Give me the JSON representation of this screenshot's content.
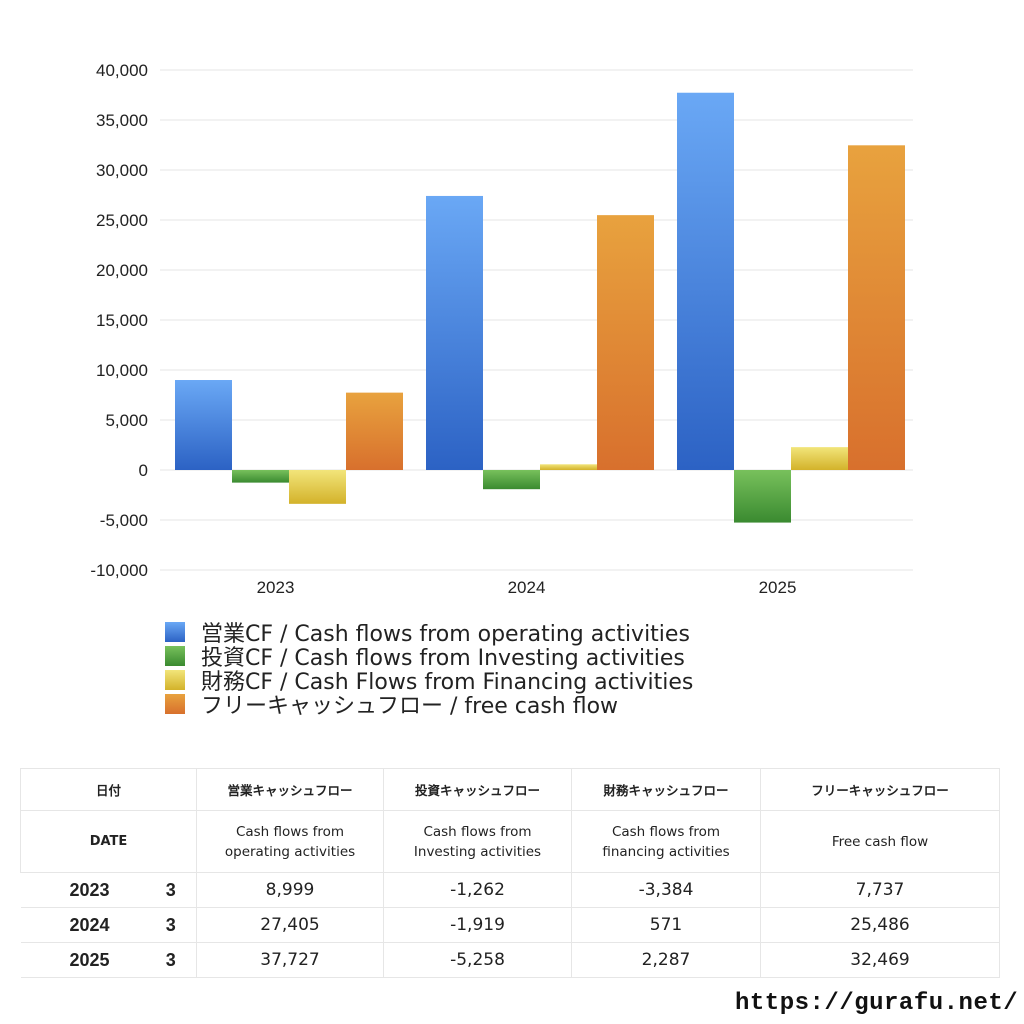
{
  "chart_data": {
    "type": "bar",
    "categories": [
      "2023",
      "2024",
      "2025"
    ],
    "series": [
      {
        "name": "営業CF / Cash flows from operating activities",
        "values": [
          8999,
          27405,
          37727
        ],
        "color_top": "#6aa8f5",
        "color_bottom": "#2c62c4"
      },
      {
        "name": "投資CF / Cash flows from Investing activities",
        "values": [
          -1262,
          -1919,
          -5258
        ],
        "color_top": "#78c15c",
        "color_bottom": "#3a8a30"
      },
      {
        "name": "財務CF / Cash Flows from Financing activities",
        "values": [
          -3384,
          571,
          2287
        ],
        "color_top": "#f2e57a",
        "color_bottom": "#d3b22a"
      },
      {
        "name": "フリーキャッシュフロー / free cash flow",
        "values": [
          7737,
          25486,
          32469
        ],
        "color_top": "#e8a23e",
        "color_bottom": "#d8702d"
      }
    ],
    "ylim": [
      -10000,
      40000
    ],
    "yticks": [
      "40,000",
      "35,000",
      "30,000",
      "25,000",
      "20,000",
      "15,000",
      "10,000",
      "5,000",
      "0",
      "-5,000",
      "-10,000"
    ],
    "grid": true,
    "legend_position": "bottom-left"
  },
  "table": {
    "header1": {
      "date": "日付",
      "operating": "営業キャッシュフロー",
      "investing": "投資キャッシュフロー",
      "financing": "財務キャッシュフロー",
      "free": "フリーキャッシュフロー"
    },
    "header2": {
      "date": "DATE",
      "operating_l1": "Cash flows from",
      "operating_l2": "operating activities",
      "investing_l1": "Cash flows from",
      "investing_l2": "Investing activities",
      "financing_l1": "Cash flows from",
      "financing_l2": "financing activities",
      "free": "Free cash flow"
    },
    "rows": [
      {
        "year": "2023",
        "month": "3",
        "operating": "8,999",
        "investing": "-1,262",
        "financing": "-3,384",
        "free": "7,737"
      },
      {
        "year": "2024",
        "month": "3",
        "operating": "27,405",
        "investing": "-1,919",
        "financing": "571",
        "free": "25,486"
      },
      {
        "year": "2025",
        "month": "3",
        "operating": "37,727",
        "investing": "-5,258",
        "financing": "2,287",
        "free": "32,469"
      }
    ],
    "negative_color": "#d9472b"
  },
  "site_url": "https://gurafu.net/"
}
